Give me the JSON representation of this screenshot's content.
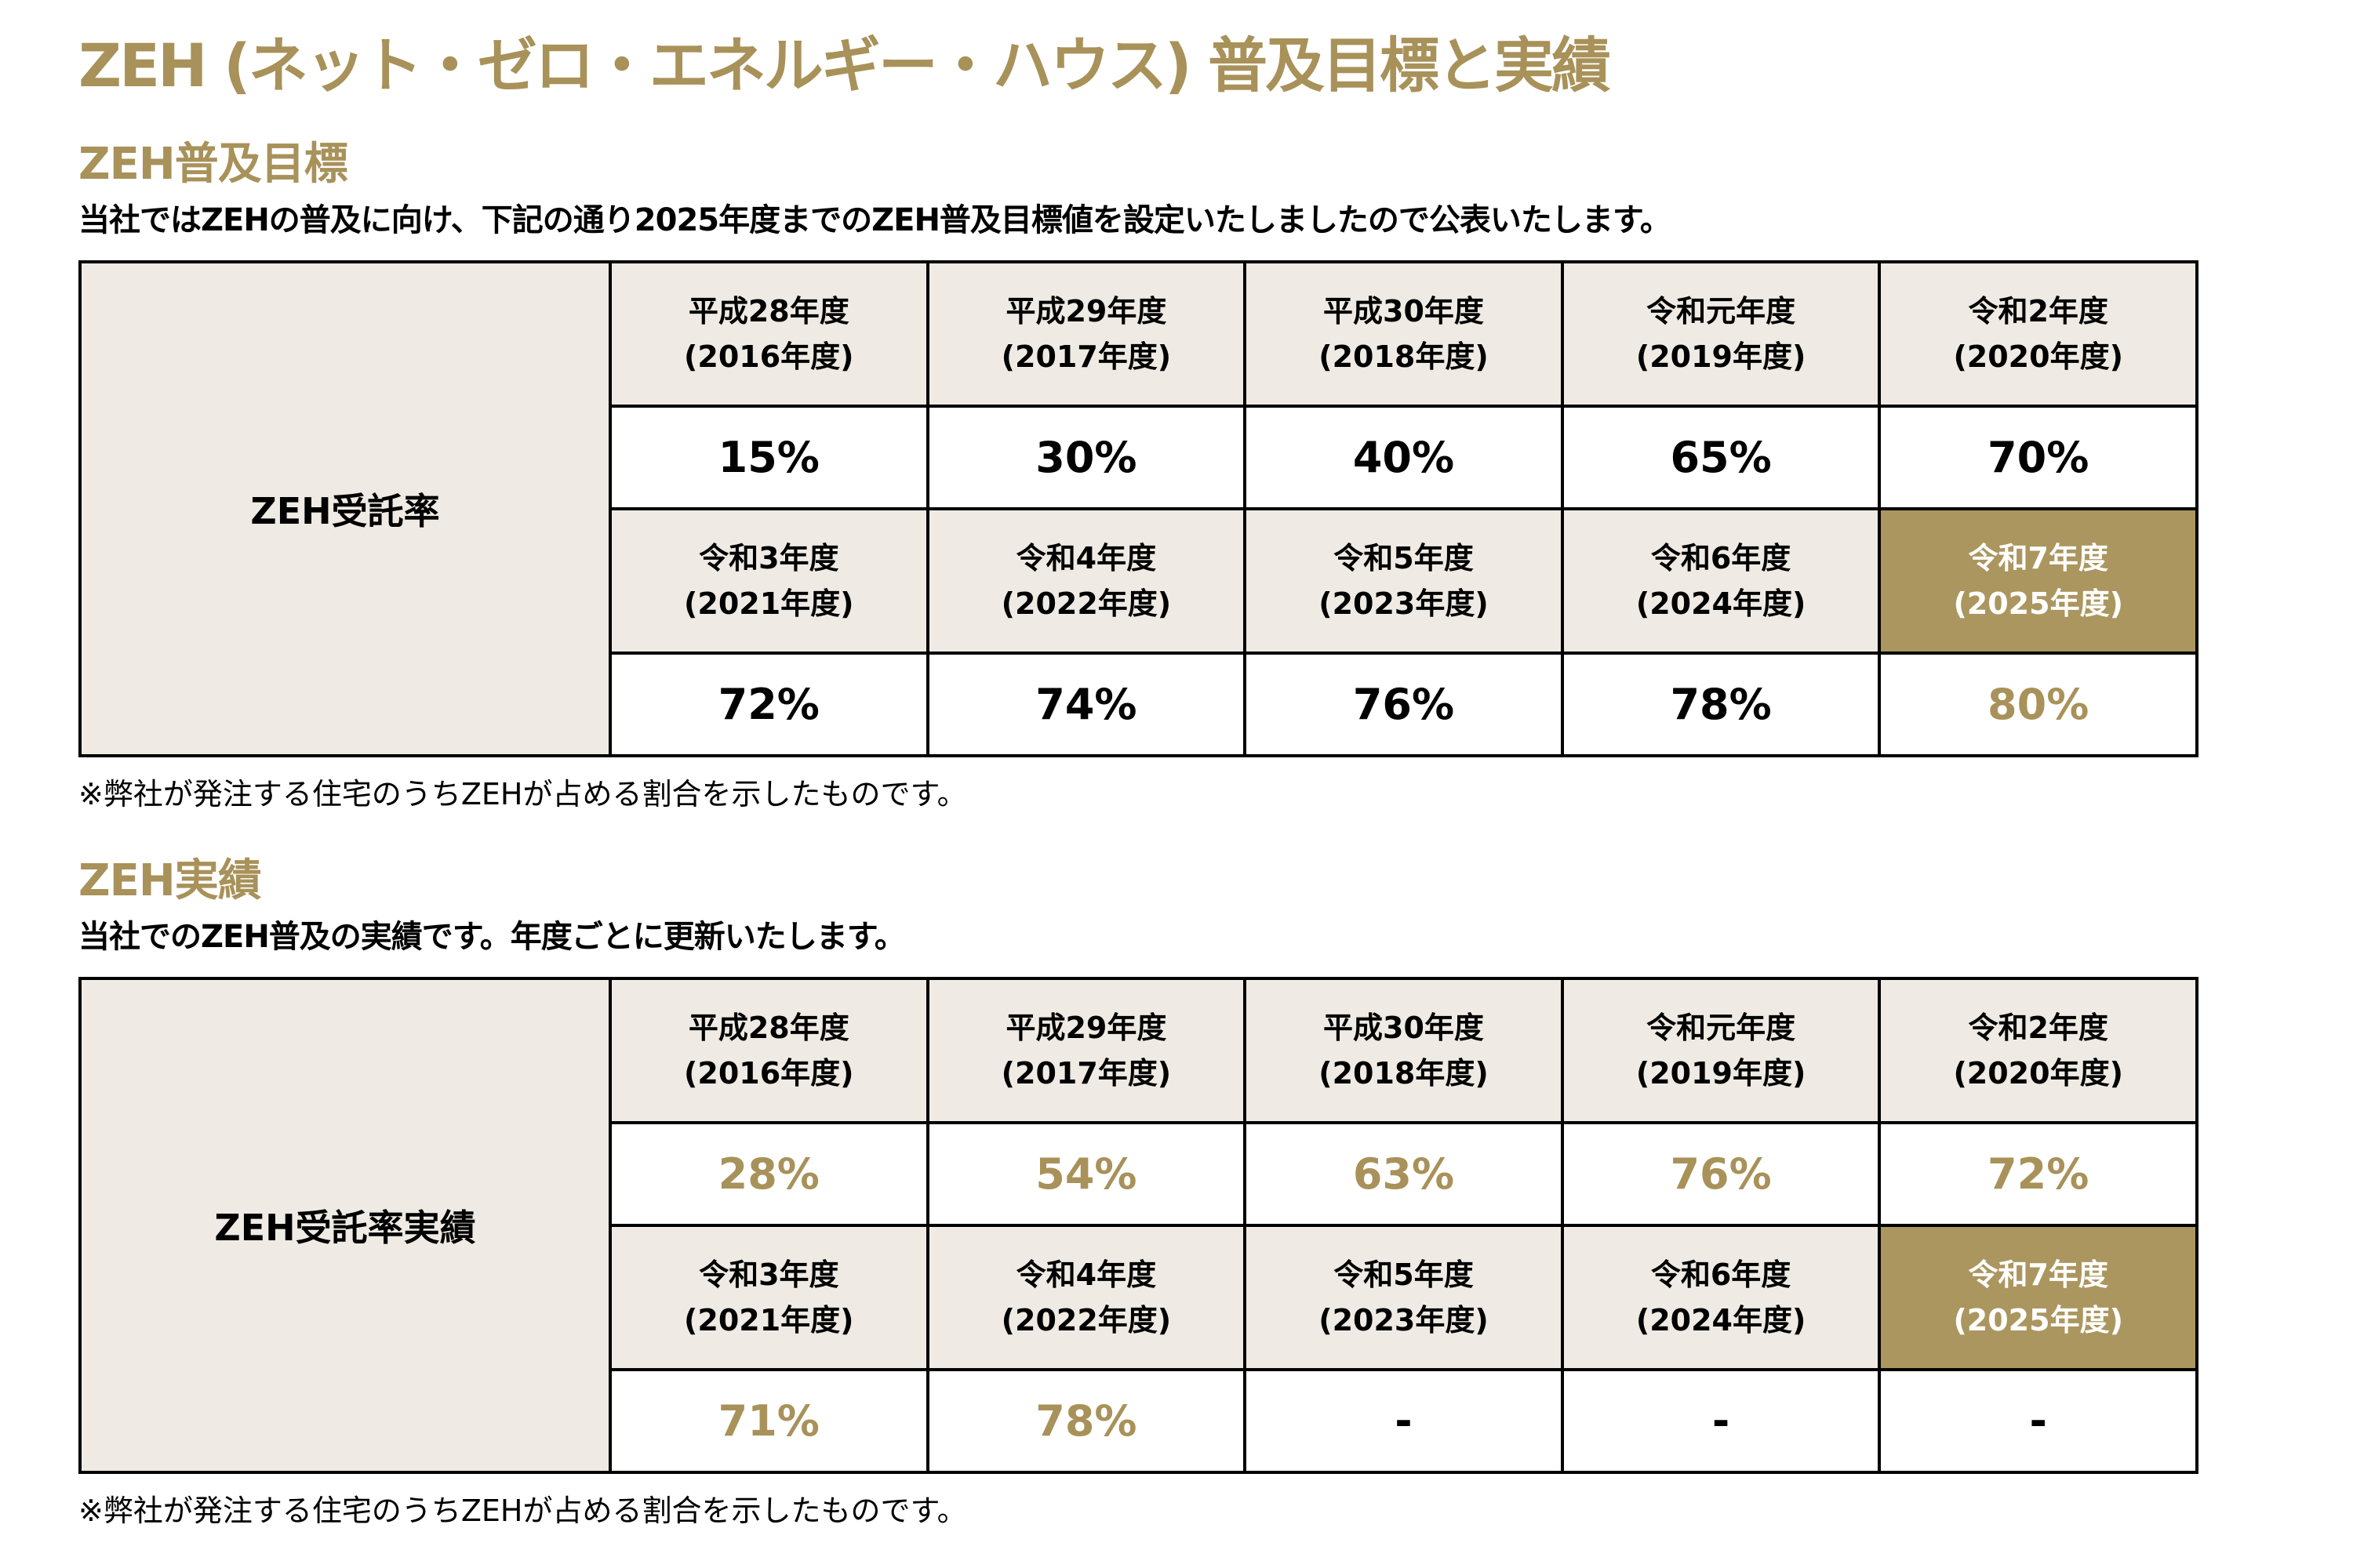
{
  "title": "ZEH (ネット・ゼロ・エネルギー・ハウス) 普及目標と実績",
  "colors": {
    "accent": "#a8925a",
    "header_fill": "#efebe4",
    "highlight_fill": "#ab965f",
    "border": "#000000"
  },
  "target": {
    "heading": "ZEH普及目標",
    "lead": "当社ではZEHの普及に向け、下記の通り2025年度までのZEH普及目標値を設定いたしましたので公表いたします。",
    "row_label": "ZEH受託率",
    "years": [
      [
        "平成28年度",
        "(2016年度)"
      ],
      [
        "平成29年度",
        "(2017年度)"
      ],
      [
        "平成30年度",
        "(2018年度)"
      ],
      [
        "令和元年度",
        "(2019年度)"
      ],
      [
        "令和2年度",
        "(2020年度)"
      ],
      [
        "令和3年度",
        "(2021年度)"
      ],
      [
        "令和4年度",
        "(2022年度)"
      ],
      [
        "令和5年度",
        "(2023年度)"
      ],
      [
        "令和6年度",
        "(2024年度)"
      ],
      [
        "令和7年度",
        "(2025年度)"
      ]
    ],
    "values": [
      "15%",
      "30%",
      "40%",
      "65%",
      "70%",
      "72%",
      "74%",
      "76%",
      "78%",
      "80%"
    ],
    "note": "※弊社が発注する住宅のうちZEHが占める割合を示したものです。"
  },
  "results": {
    "heading": "ZEH実績",
    "lead": "当社でのZEH普及の実績です。年度ごとに更新いたします。",
    "row_label": "ZEH受託率実績",
    "years": [
      [
        "平成28年度",
        "(2016年度)"
      ],
      [
        "平成29年度",
        "(2017年度)"
      ],
      [
        "平成30年度",
        "(2018年度)"
      ],
      [
        "令和元年度",
        "(2019年度)"
      ],
      [
        "令和2年度",
        "(2020年度)"
      ],
      [
        "令和3年度",
        "(2021年度)"
      ],
      [
        "令和4年度",
        "(2022年度)"
      ],
      [
        "令和5年度",
        "(2023年度)"
      ],
      [
        "令和6年度",
        "(2024年度)"
      ],
      [
        "令和7年度",
        "(2025年度)"
      ]
    ],
    "values": [
      "28%",
      "54%",
      "63%",
      "76%",
      "72%",
      "71%",
      "78%",
      "-",
      "-",
      "-"
    ],
    "note": "※弊社が発注する住宅のうちZEHが占める割合を示したものです。"
  }
}
